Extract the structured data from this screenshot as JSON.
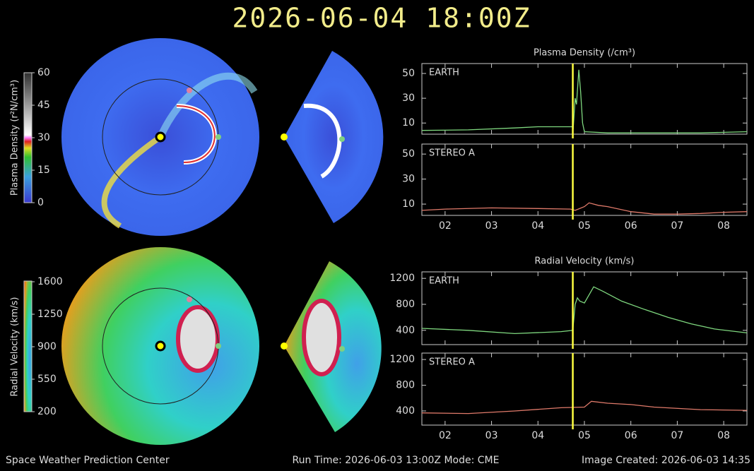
{
  "title": "2026-06-04 18:00Z",
  "footer": {
    "left": "Space Weather Prediction Center",
    "center": "Run Time: 2026-06-03 13:00Z  Mode: CME",
    "right": "Image Created: 2026-06-03 14:35"
  },
  "colorbars": [
    {
      "label": "Plasma Density (r²N/cm³)",
      "ticks": [
        0,
        15,
        30,
        45,
        60
      ]
    },
    {
      "label": "Radial Velocity (km/s)",
      "ticks": [
        200,
        550,
        900,
        1250,
        1600
      ]
    }
  ],
  "chart_data": [
    {
      "type": "line",
      "title": "Plasma Density (/cm³)",
      "label": "EARTH",
      "color": "#7fd87f",
      "x": [
        1.5,
        2.5,
        3.5,
        4.0,
        4.5,
        4.74,
        4.76,
        4.8,
        4.83,
        4.88,
        4.92,
        4.96,
        5.0,
        5.5,
        6.5,
        7.5,
        8.0,
        8.5
      ],
      "values": [
        4,
        4.5,
        6,
        7,
        7,
        7,
        6,
        30,
        25,
        53,
        35,
        10,
        3,
        2,
        2,
        2,
        2.5,
        3
      ],
      "marker_x": 4.75,
      "xlim": [
        1.5,
        8.5
      ],
      "ylim": [
        1,
        58
      ],
      "xticks": [
        2,
        3,
        4,
        5,
        6,
        7,
        8
      ],
      "yticks": [
        10,
        30,
        50
      ]
    },
    {
      "type": "line",
      "label": "STEREO A",
      "color": "#e07a6a",
      "x": [
        1.5,
        2.0,
        3.0,
        4.0,
        4.7,
        4.8,
        5.0,
        5.1,
        5.3,
        5.5,
        6.0,
        6.5,
        7.0,
        7.5,
        8.0,
        8.5
      ],
      "values": [
        5,
        6,
        7,
        6.5,
        6,
        5,
        8,
        11,
        9,
        8,
        4,
        2,
        2,
        2.5,
        3.5,
        4
      ],
      "marker_x": 4.75,
      "xlim": [
        1.5,
        8.5
      ],
      "ylim": [
        1,
        58
      ],
      "xticks": [
        {
          "value": 2,
          "label": "02"
        },
        {
          "value": 3,
          "label": "03"
        },
        {
          "value": 4,
          "label": "04"
        },
        {
          "value": 5,
          "label": "05"
        },
        {
          "value": 6,
          "label": "06"
        },
        {
          "value": 7,
          "label": "07"
        },
        {
          "value": 8,
          "label": "08"
        }
      ],
      "yticks": [
        10,
        30,
        50
      ]
    },
    {
      "type": "line",
      "title": "Radial Velocity (km/s)",
      "label": "EARTH",
      "color": "#7fd87f",
      "x": [
        1.5,
        2.5,
        3.5,
        4.5,
        4.75,
        4.8,
        4.85,
        4.9,
        5.0,
        5.2,
        5.4,
        5.8,
        6.3,
        6.8,
        7.3,
        7.8,
        8.5
      ],
      "values": [
        430,
        400,
        350,
        380,
        400,
        800,
        900,
        850,
        820,
        1070,
        1000,
        850,
        720,
        600,
        500,
        420,
        360
      ],
      "marker_x": 4.75,
      "xlim": [
        1.5,
        8.5
      ],
      "ylim": [
        180,
        1300
      ],
      "xticks": [
        2,
        3,
        4,
        5,
        6,
        7,
        8
      ],
      "yticks": [
        400,
        800,
        1200
      ]
    },
    {
      "type": "line",
      "label": "STEREO A",
      "color": "#e07a6a",
      "x": [
        1.5,
        2.5,
        3.5,
        4.5,
        5.0,
        5.15,
        5.5,
        6.0,
        6.5,
        7.5,
        8.5
      ],
      "values": [
        370,
        360,
        400,
        450,
        460,
        550,
        520,
        500,
        460,
        420,
        410
      ],
      "marker_x": 4.75,
      "xlim": [
        1.5,
        8.5
      ],
      "ylim": [
        180,
        1300
      ],
      "xticks": [
        {
          "value": 2,
          "label": "02"
        },
        {
          "value": 3,
          "label": "03"
        },
        {
          "value": 4,
          "label": "04"
        },
        {
          "value": 5,
          "label": "05"
        },
        {
          "value": 6,
          "label": "06"
        },
        {
          "value": 7,
          "label": "07"
        },
        {
          "value": 8,
          "label": "08"
        }
      ],
      "yticks": [
        400,
        800,
        1200
      ]
    }
  ]
}
